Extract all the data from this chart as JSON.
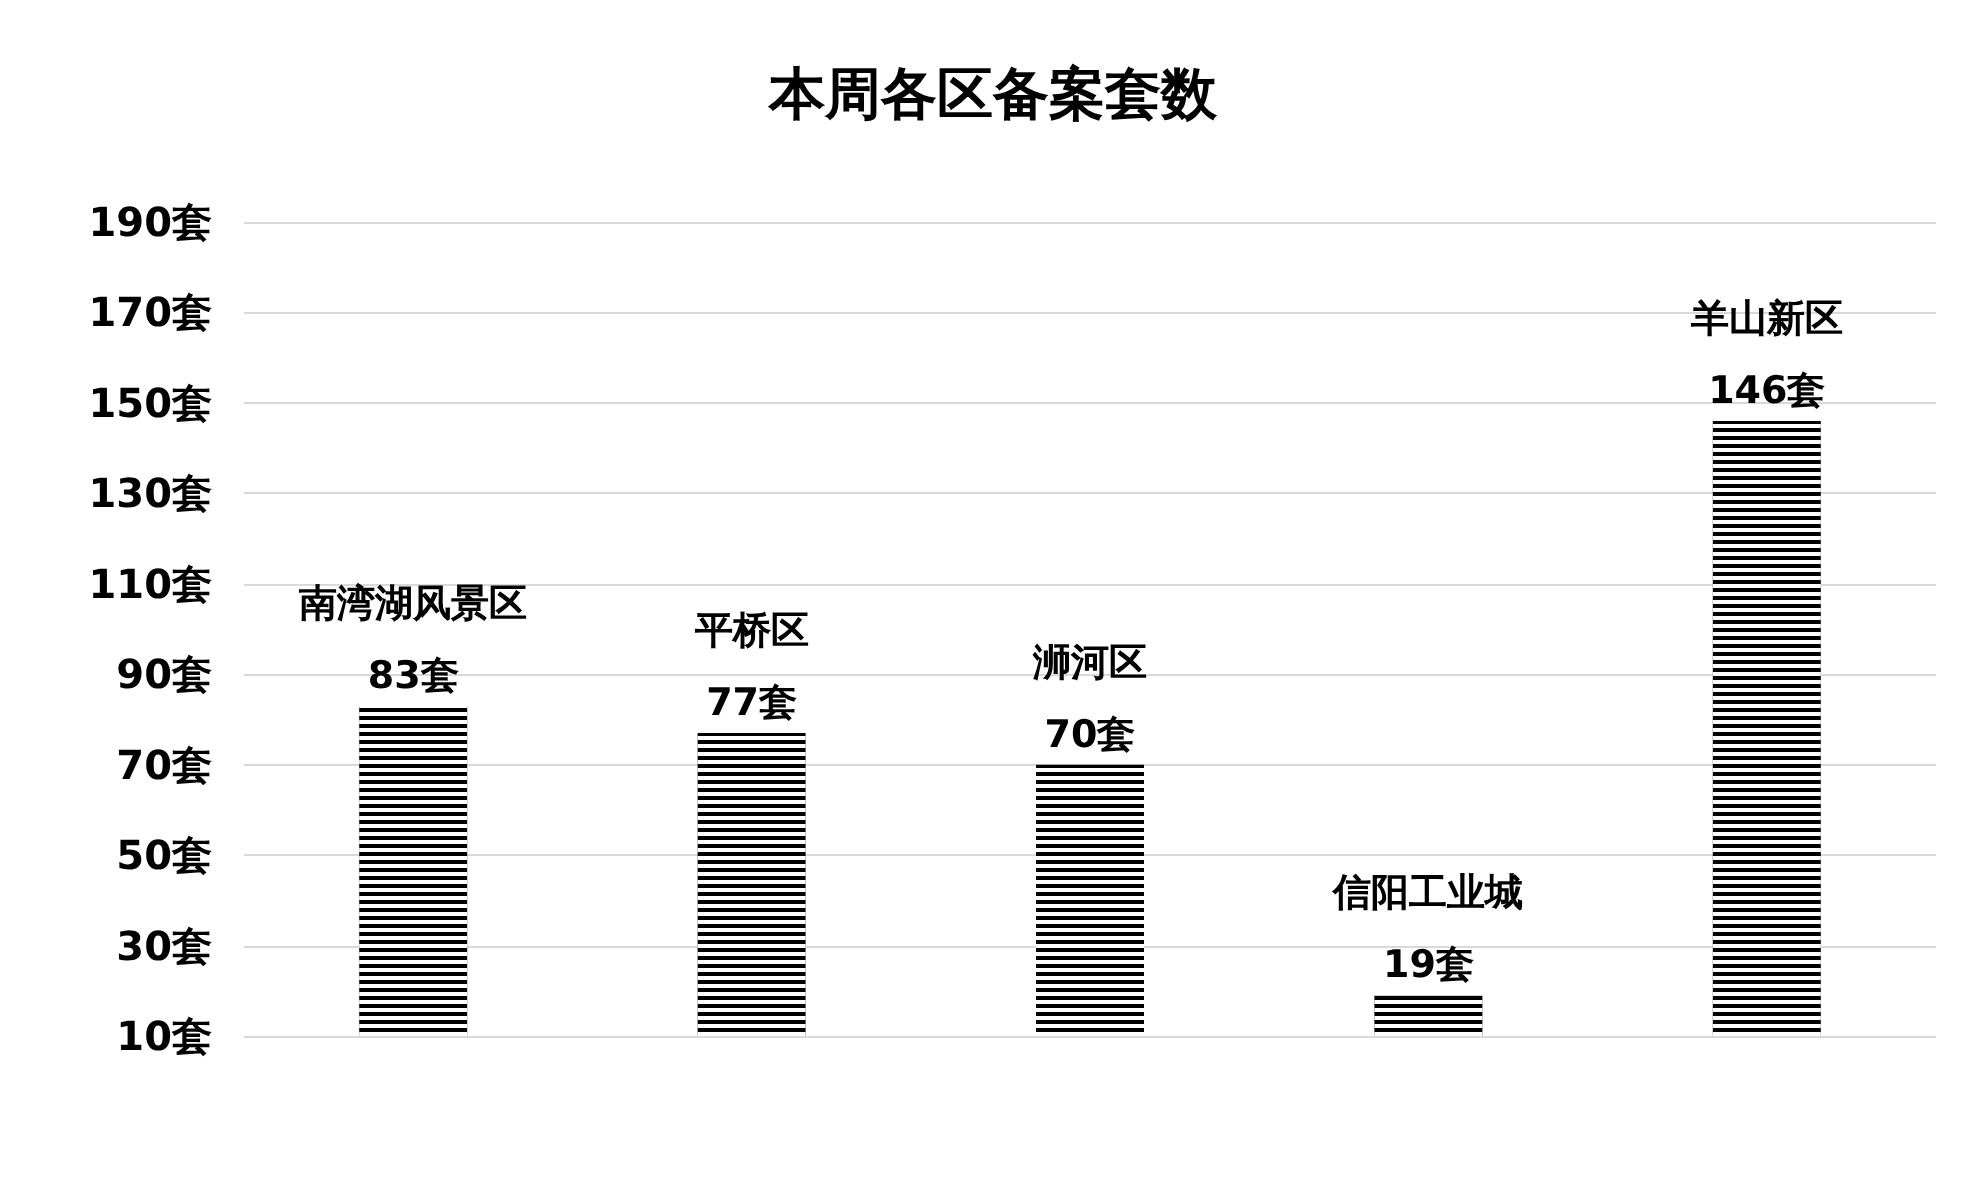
{
  "chart_data": {
    "type": "bar",
    "title": "本周各区备案套数",
    "categories": [
      "南湾湖风景区",
      "平桥区",
      "浉河区",
      "信阳工业城",
      "羊山新区"
    ],
    "values": [
      83,
      77,
      70,
      19,
      146
    ],
    "value_labels": [
      "83套",
      "77套",
      "70套",
      "19套",
      "146套"
    ],
    "color": "#000000",
    "ylim": [
      10,
      190
    ],
    "yticks": [
      {
        "value": 10,
        "label": "10套"
      },
      {
        "value": 30,
        "label": "30套"
      },
      {
        "value": 50,
        "label": "50套"
      },
      {
        "value": 70,
        "label": "70套"
      },
      {
        "value": 90,
        "label": "90套"
      },
      {
        "value": 110,
        "label": "110套"
      },
      {
        "value": 130,
        "label": "130套"
      },
      {
        "value": 150,
        "label": "150套"
      },
      {
        "value": 170,
        "label": "170套"
      },
      {
        "value": 190,
        "label": "190套"
      }
    ],
    "tick_labels": "y",
    "grid": "y"
  }
}
